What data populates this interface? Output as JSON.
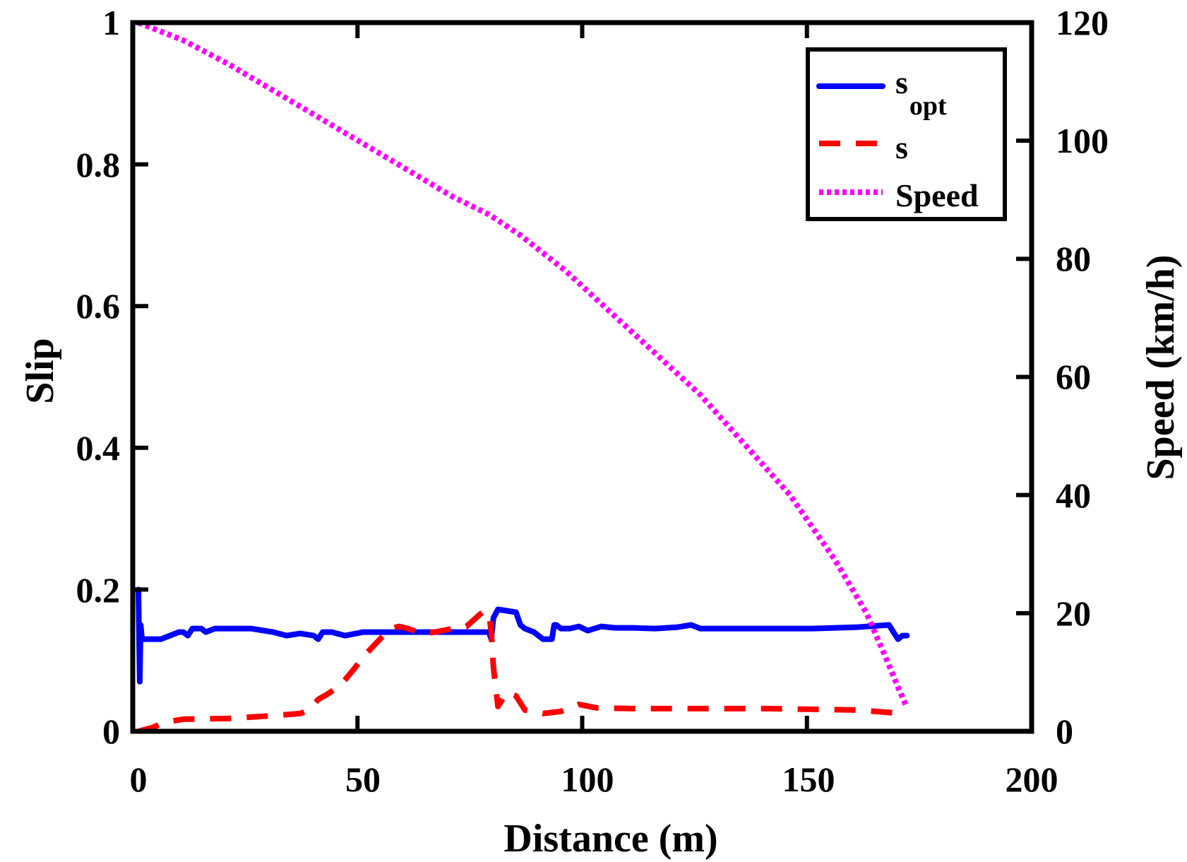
{
  "chart_data": {
    "type": "line",
    "title": "",
    "xlabel": "Distance (m)",
    "ylabel": "Slip",
    "y2label": "Speed (km/h)",
    "xlim": [
      0,
      200
    ],
    "ylim": [
      0,
      1
    ],
    "y2lim": [
      0,
      120
    ],
    "xticks": [
      "0",
      "50",
      "100",
      "150",
      "200"
    ],
    "yticks": [
      "0",
      "0.2",
      "0.4",
      "0.6",
      "0.8",
      "1"
    ],
    "y2ticks": [
      "0",
      "20",
      "40",
      "60",
      "80",
      "100",
      "120"
    ],
    "grid": false,
    "legend_position": "top-right",
    "legend": [
      {
        "main": "s",
        "sub": "opt",
        "color": "#0000ff",
        "style": "solid"
      },
      {
        "main": "s",
        "sub": "",
        "color": "#ff0000",
        "style": "dashed"
      },
      {
        "main": "Speed",
        "sub": "",
        "color": "#ff00ff",
        "style": "dotted"
      }
    ],
    "series": [
      {
        "name": "s_opt",
        "axis": "left",
        "color": "#0000ff",
        "style": "solid",
        "x": [
          0,
          0.3,
          0.5,
          0.8,
          1.2,
          3,
          5,
          7,
          9,
          10,
          11,
          12,
          13,
          14,
          15,
          17,
          20,
          25,
          30,
          33,
          36,
          39,
          40,
          41,
          43,
          46,
          50,
          55,
          60,
          70,
          78,
          78.5,
          79,
          80,
          82,
          84,
          85,
          86,
          88,
          90,
          92,
          92.5,
          93,
          94,
          96,
          98,
          100,
          103,
          106,
          110,
          115,
          120,
          123,
          125,
          130,
          140,
          150,
          160,
          167,
          168,
          169,
          170,
          171
        ],
        "values": [
          0.2,
          0.07,
          0.15,
          0.13,
          0.13,
          0.13,
          0.13,
          0.135,
          0.14,
          0.14,
          0.135,
          0.145,
          0.145,
          0.145,
          0.14,
          0.145,
          0.145,
          0.145,
          0.14,
          0.135,
          0.138,
          0.135,
          0.13,
          0.14,
          0.14,
          0.135,
          0.14,
          0.14,
          0.14,
          0.14,
          0.14,
          0.13,
          0.16,
          0.172,
          0.17,
          0.168,
          0.15,
          0.145,
          0.14,
          0.13,
          0.13,
          0.15,
          0.15,
          0.145,
          0.145,
          0.148,
          0.142,
          0.148,
          0.146,
          0.146,
          0.145,
          0.147,
          0.15,
          0.145,
          0.145,
          0.145,
          0.145,
          0.147,
          0.15,
          0.14,
          0.13,
          0.135,
          0.135
        ]
      },
      {
        "name": "s",
        "axis": "left",
        "color": "#ff0000",
        "style": "dashed",
        "x": [
          0,
          3,
          6,
          10,
          20,
          30,
          36,
          38,
          40,
          42,
          45,
          48,
          50,
          53,
          56,
          58,
          60,
          63,
          66,
          70,
          73,
          76,
          77,
          78,
          78.5,
          79,
          80,
          81,
          82,
          84,
          86,
          90,
          94,
          98,
          102,
          110,
          120,
          140,
          160,
          170
        ],
        "values": [
          0,
          0.005,
          0.013,
          0.017,
          0.018,
          0.022,
          0.025,
          0.03,
          0.045,
          0.052,
          0.065,
          0.088,
          0.105,
          0.125,
          0.145,
          0.148,
          0.145,
          0.138,
          0.14,
          0.145,
          0.148,
          0.165,
          0.17,
          0.165,
          0.14,
          0.09,
          0.035,
          0.045,
          0.055,
          0.05,
          0.03,
          0.025,
          0.028,
          0.038,
          0.033,
          0.032,
          0.032,
          0.032,
          0.03,
          0.025
        ]
      },
      {
        "name": "Speed",
        "axis": "right",
        "color": "#ff00ff",
        "style": "dotted",
        "x": [
          0,
          10,
          20,
          30,
          40,
          50,
          60,
          70,
          78,
          85,
          95,
          105,
          115,
          125,
          135,
          145,
          155,
          162,
          166,
          169,
          171
        ],
        "values": [
          120,
          117,
          113,
          108.5,
          104,
          99.5,
          95,
          90.5,
          87.5,
          84,
          78,
          71,
          64,
          57,
          48.5,
          40,
          29,
          20,
          13,
          7.5,
          4
        ]
      }
    ]
  }
}
